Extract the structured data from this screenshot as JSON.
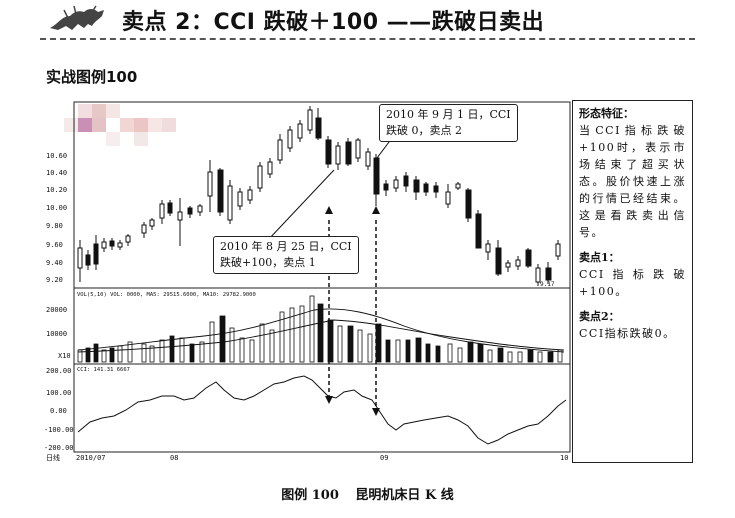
{
  "header": {
    "title": "卖点 2：CCI 跌破＋100 ——跌破日卖出"
  },
  "section_title": "实战图例100",
  "chart": {
    "price_axis_labels": [
      "10.60",
      "10.40",
      "10.20",
      "10.00",
      "9.80",
      "9.60",
      "9.40",
      "9.20"
    ],
    "volume_header": "VOL(5,10) VOL: 0000, MA5: 29515.6000, MA10: 29782.9000",
    "volume_axis_labels": [
      "20000",
      "10000",
      "X10"
    ],
    "cci_header": "CCI: 141.31 6667",
    "cci_axis_labels": [
      "200.00",
      "100.00",
      "0.00",
      "-100.00",
      "-200.00"
    ],
    "date_axis_labels": [
      "日线",
      "2010/07",
      "08",
      "09",
      "10"
    ],
    "low_price_label": "9.17",
    "callout_1": [
      "2010 年 8 月 25 日，CCI",
      "跌破+100，卖点 1"
    ],
    "callout_2": [
      "2010 年 9 月 1 日，CCI",
      "跌破 0，卖点 2"
    ]
  },
  "sidebar": {
    "feature_title": "形态特征：",
    "feature_text": "当CCI指标跌破+100时，表示市场结束了超买状态。股价快速上涨的行情已经结束。这是看跌卖出信号。",
    "point1_title": "卖点1：",
    "point1_text": "CCI指标跌破+100。",
    "point2_title": "卖点2：",
    "point2_text": "CCI指标跌破0。"
  },
  "caption": {
    "figure_no": "图例 100",
    "title": "昆明机床日 K 线"
  },
  "colors": {
    "ink": "#111111",
    "bar_fill": "#111111",
    "bar_hollow": "#ffffff"
  }
}
